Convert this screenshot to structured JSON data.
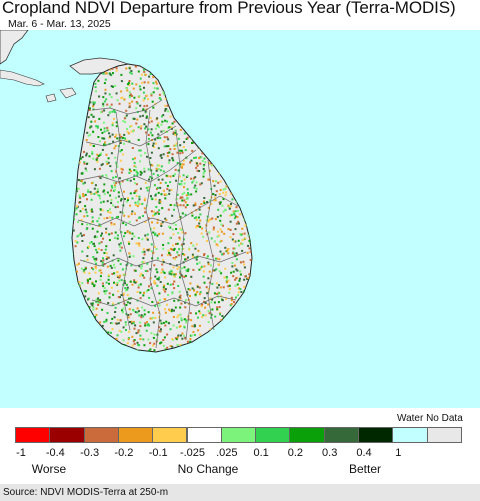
{
  "title": "Cropland NDVI Departure from Previous Year (Terra-MODIS)",
  "subtitle": "Mar. 6 - Mar. 13, 2025",
  "legend": {
    "water_nodata_label": "Water No Data",
    "swatches": [
      {
        "color": "#ff0000"
      },
      {
        "color": "#9b0000"
      },
      {
        "color": "#cb6a3b"
      },
      {
        "color": "#eb9a1e"
      },
      {
        "color": "#ffcc4d"
      },
      {
        "color": "#ffffff"
      },
      {
        "color": "#7cf47c"
      },
      {
        "color": "#32d250"
      },
      {
        "color": "#0aa00a"
      },
      {
        "color": "#35693a"
      },
      {
        "color": "#002800"
      },
      {
        "color": "#c2ffff"
      },
      {
        "color": "#e8e8e8"
      }
    ],
    "ticks": [
      "-1",
      "-0.4",
      "-0.3",
      "-0.2",
      "-0.1",
      "-.025",
      ".025",
      "0.1",
      "0.2",
      "0.3",
      "0.4",
      "1"
    ],
    "descriptors": [
      "Worse",
      "No Change",
      "Better"
    ]
  },
  "source": "Source: NDVI MODIS-Terra at 250-m",
  "colors": {
    "water": "#c2ffff",
    "land": "#ebebeb",
    "boundary": "#666666"
  }
}
